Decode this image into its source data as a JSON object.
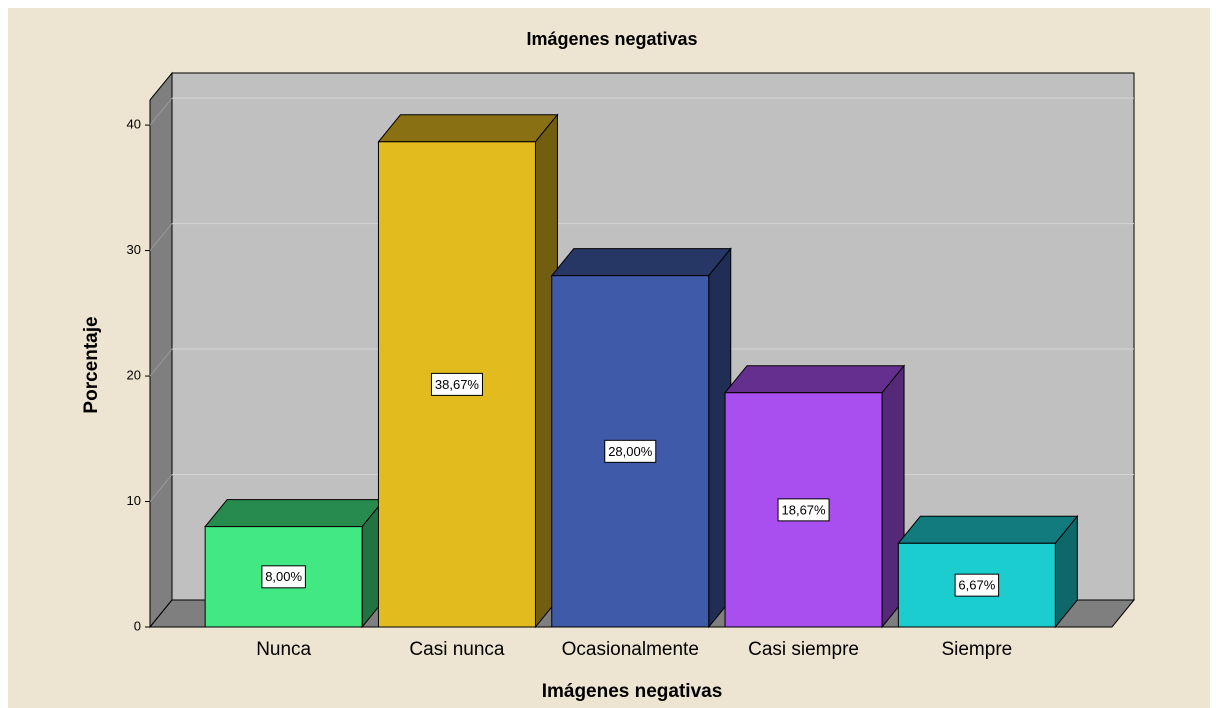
{
  "chart_data": {
    "type": "bar3d",
    "title": "Imágenes negativas",
    "x_label": "Imágenes negativas",
    "y_label": "Porcentaje",
    "categories": [
      "Nunca",
      "Casi nunca",
      "Ocasionalmente",
      "Casi siempre",
      "Siempre"
    ],
    "values": [
      8,
      38.67,
      28,
      18.67,
      6.67
    ],
    "value_labels": [
      "8,00%",
      "38,67%",
      "28,00%",
      "18,67%",
      "6,67%"
    ],
    "colors": [
      "#42e882",
      "#e2bb1f",
      "#3f5aa8",
      "#a94ff0",
      "#1ccdd0"
    ],
    "ylim": [
      0,
      42
    ],
    "yticks": [
      0,
      10,
      20,
      30,
      40
    ],
    "grid": true
  }
}
